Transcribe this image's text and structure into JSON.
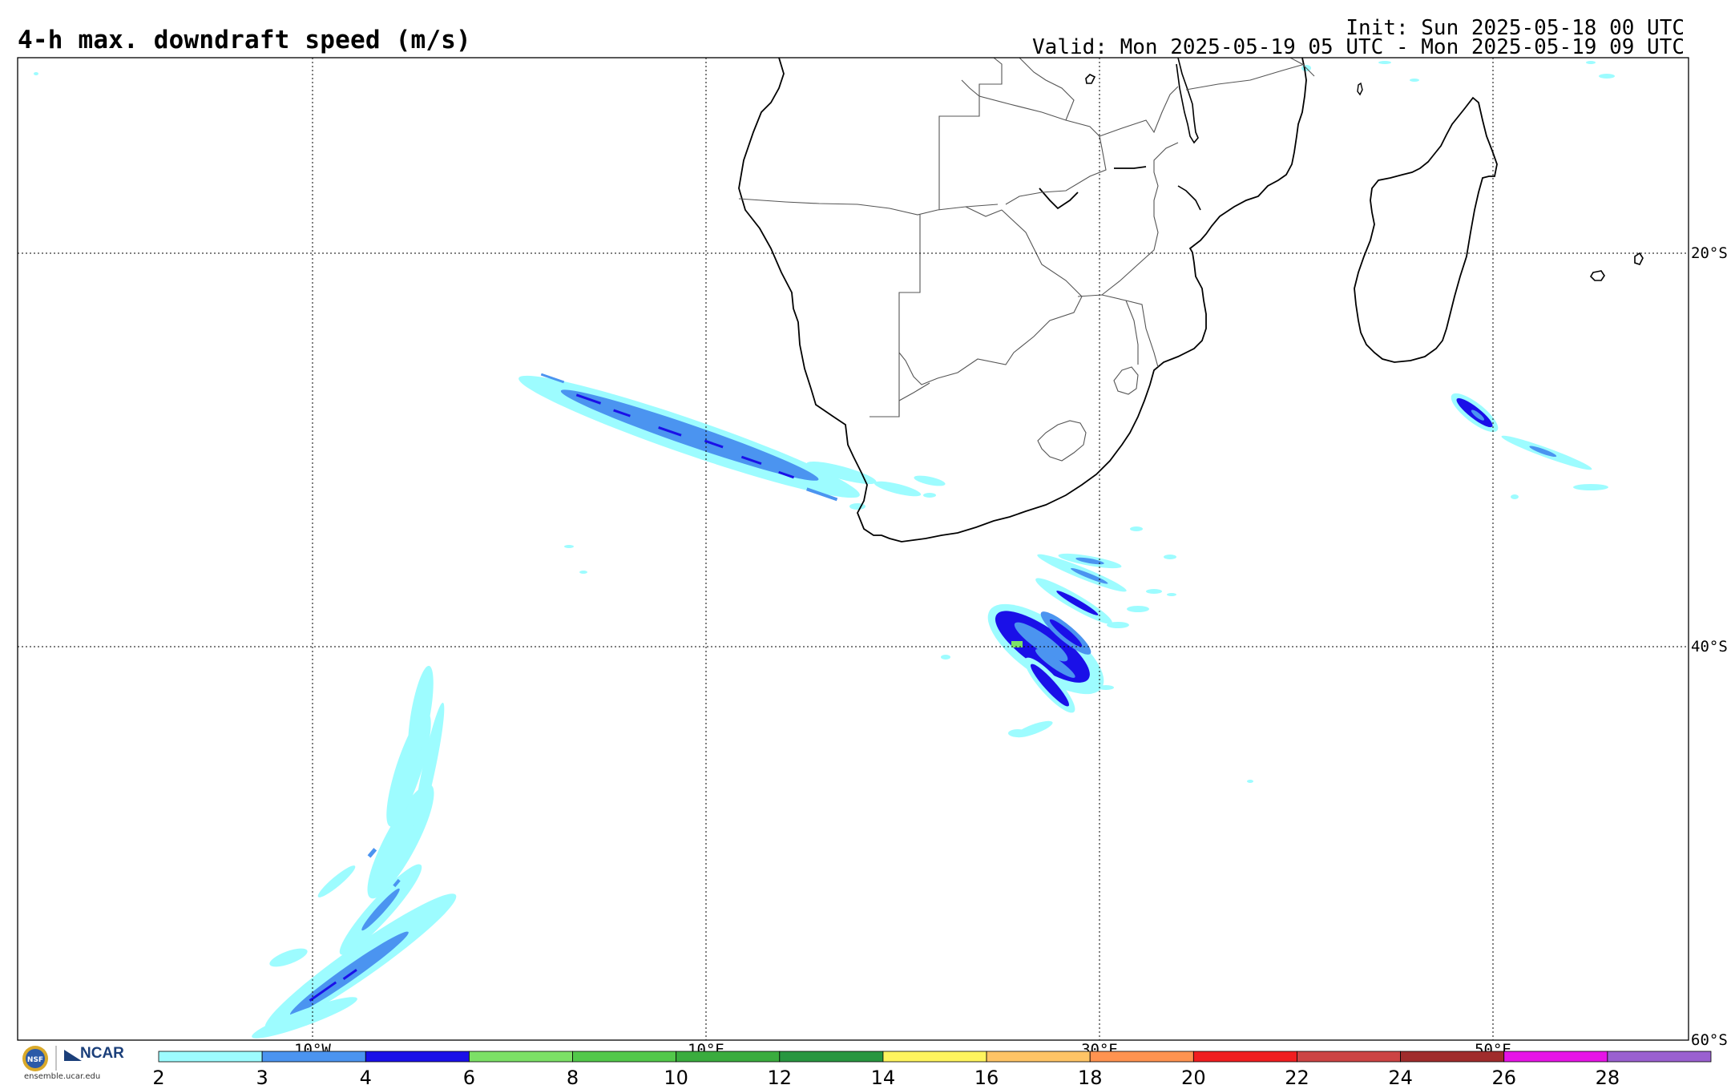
{
  "header": {
    "title": "4-h max. downdraft speed (m/s)",
    "init": "Init: Sun 2025-05-18 00 UTC",
    "valid": "Valid: Mon 2025-05-19 05 UTC - Mon 2025-05-19 09 UTC"
  },
  "map": {
    "projection": "cylindrical equidistant",
    "lon_range": [
      -25,
      60
    ],
    "lat_range": [
      -60,
      -10
    ],
    "lon_gridlines": [
      -10,
      10,
      30,
      50
    ],
    "lon_labels": [
      "10°W",
      "10°E",
      "30°E",
      "50°E"
    ],
    "lat_gridlines": [
      -20,
      -40,
      -60
    ],
    "lat_labels": [
      "20°S",
      "40°S",
      "60°S"
    ],
    "gridline_style": "dotted"
  },
  "colorbar": {
    "ticks": [
      "2",
      "3",
      "4",
      "6",
      "8",
      "10",
      "12",
      "14",
      "16",
      "18",
      "20",
      "22",
      "24",
      "26",
      "28"
    ],
    "colors": [
      "#9dfcff",
      "#4b94f0",
      "#1a10e8",
      "#7ce066",
      "#52c84a",
      "#3aac3e",
      "#289640",
      "#fff45e",
      "#ffc466",
      "#ff9350",
      "#f01e20",
      "#cc4444",
      "#a02c2c",
      "#e614e6",
      "#9a60d0"
    ]
  },
  "footer": {
    "logo_label": "NCAR",
    "url": "ensemble.ucar.edu"
  },
  "colors": {
    "cyan": "#9dfcff",
    "mid_blue": "#4b94f0",
    "dark_blue": "#1a10e8",
    "green": "#7ce066"
  }
}
